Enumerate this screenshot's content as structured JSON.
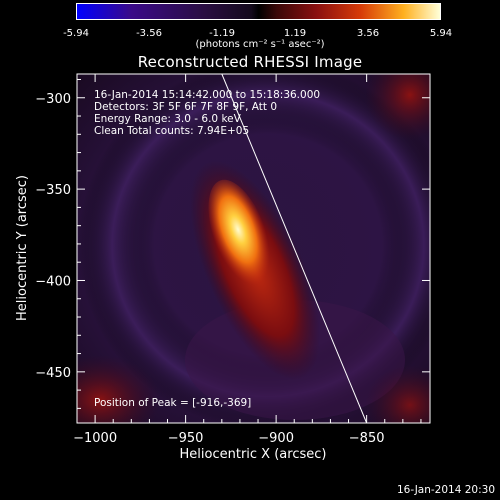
{
  "colorbar": {
    "ticks": [
      "-5.94",
      "-3.56",
      "-1.19",
      "1.19",
      "3.56",
      "5.94"
    ],
    "units": "(photons cm⁻² s⁻¹ asec⁻²)",
    "colors": [
      "#0000ff",
      "#2a0e42",
      "#000000",
      "#8a1010",
      "#ffb020",
      "#ffffd8"
    ]
  },
  "chart_data": {
    "type": "heatmap",
    "title": "Reconstructed RHESSI Image",
    "xlabel": "Heliocentric X (arcsec)",
    "ylabel": "Heliocentric Y (arcsec)",
    "xlim": [
      -1010,
      -815
    ],
    "ylim": [
      -478,
      -287
    ],
    "xticks": [
      -1000,
      -950,
      -900,
      -850
    ],
    "yticks": [
      -300,
      -350,
      -400,
      -450
    ],
    "color_range": [
      -5.94,
      5.94
    ],
    "peak": {
      "x": -916,
      "y": -369
    },
    "limb_line": {
      "x": [
        -930,
        -850
      ],
      "y": [
        -287,
        -478
      ]
    },
    "annotations": [
      "16-Jan-2014 15:14:42.000 to 15:18:36.000",
      "Detectors: 3F 5F 6F 7F 8F 9F, Att 0",
      "Energy Range: 3.0 - 6.0 keV",
      "Clean    Total counts: 7.94E+05"
    ],
    "peak_label": "Position of Peak = [-916,-369]"
  },
  "footer": {
    "date": "16-Jan-2014 20:30"
  }
}
